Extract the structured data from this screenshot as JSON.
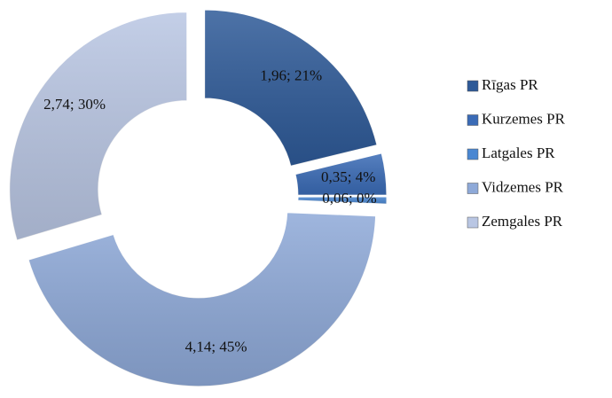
{
  "chart_data": {
    "type": "doughnut",
    "categories": [
      "Rīgas PR",
      "Kurzemes PR",
      "Latgales PR",
      "Vidzemes PR",
      "Zemgales PR"
    ],
    "values": [
      1.96,
      0.35,
      0.06,
      4.14,
      2.74
    ],
    "value_labels": [
      "1,96; 21%",
      "0,35; 4%",
      "0,06; 0%",
      "4,14; 45%",
      "2,74; 30%"
    ],
    "colors": [
      "#2e5a98",
      "#3a6bb6",
      "#4a87d2",
      "#8ea9d8",
      "#b9c6e3"
    ],
    "legend": "right"
  }
}
